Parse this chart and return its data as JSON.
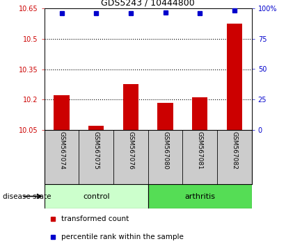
{
  "title": "GDS5243 / 10444800",
  "samples": [
    "GSM567074",
    "GSM567075",
    "GSM567076",
    "GSM567080",
    "GSM567081",
    "GSM567082"
  ],
  "bar_values": [
    10.22,
    10.07,
    10.275,
    10.185,
    10.212,
    10.575
  ],
  "percentile_values": [
    96,
    96,
    96,
    96.5,
    96,
    98.5
  ],
  "ylim_left": [
    10.05,
    10.65
  ],
  "ylim_right": [
    0,
    100
  ],
  "yticks_left": [
    10.05,
    10.2,
    10.35,
    10.5,
    10.65
  ],
  "yticks_right": [
    0,
    25,
    50,
    75,
    100
  ],
  "ytick_labels_right": [
    "0",
    "25",
    "50",
    "75",
    "100%"
  ],
  "bar_color": "#cc0000",
  "dot_color": "#0000cc",
  "control_label": "control",
  "arthritis_label": "arthritis",
  "disease_label": "disease state",
  "legend_bar_label": "transformed count",
  "legend_dot_label": "percentile rank within the sample",
  "control_color": "#ccffcc",
  "arthritis_color": "#55dd55",
  "sample_bg_color": "#cccccc",
  "plot_bg_color": "#ffffff",
  "figsize": [
    4.11,
    3.54
  ],
  "dpi": 100,
  "grid_yticks": [
    10.2,
    10.35,
    10.5
  ]
}
